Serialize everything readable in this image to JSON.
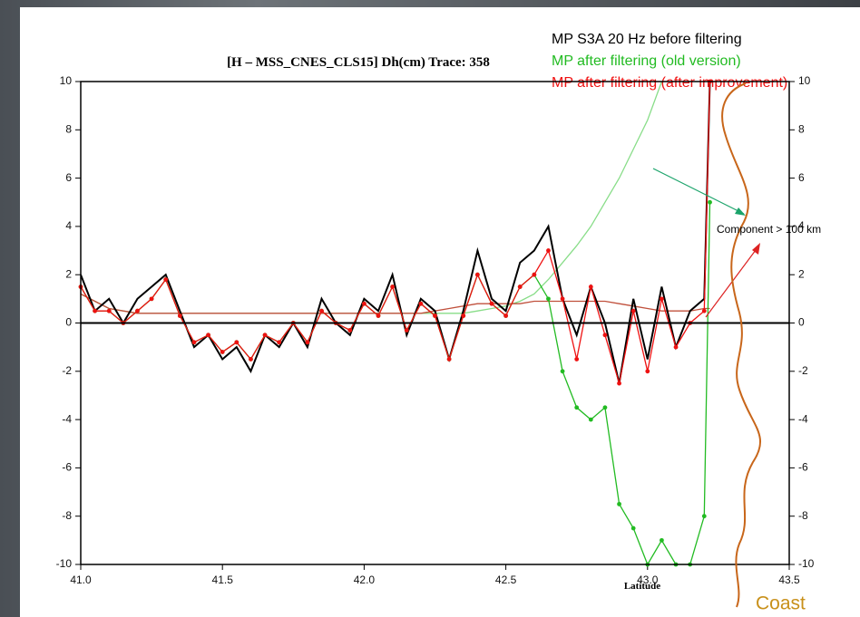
{
  "chart_data": {
    "type": "line",
    "title": "[H – MSS_CNES_CLS15]   Dh(cm)   Trace: 358",
    "xlabel": "Latitude",
    "annotations": [
      "Component > 100 km",
      "Coast"
    ],
    "x": [
      41.0,
      41.05,
      41.1,
      41.15,
      41.2,
      41.25,
      41.3,
      41.35,
      41.4,
      41.45,
      41.5,
      41.55,
      41.6,
      41.65,
      41.7,
      41.75,
      41.8,
      41.85,
      41.9,
      41.95,
      42.0,
      42.05,
      42.1,
      42.15,
      42.2,
      42.25,
      42.3,
      42.35,
      42.4,
      42.45,
      42.5,
      42.55,
      42.6,
      42.65,
      42.7,
      42.75,
      42.8,
      42.85,
      42.9,
      42.95,
      43.0,
      43.05,
      43.1,
      43.15,
      43.2,
      43.22
    ],
    "series": [
      {
        "name": "MP S3A 20 Hz before filtering",
        "color": "#000000",
        "markers": false,
        "values": [
          2.0,
          0.5,
          1.0,
          0.0,
          1.0,
          1.5,
          2.0,
          0.5,
          -1.0,
          -0.5,
          -1.5,
          -1.0,
          -2.0,
          -0.5,
          -1.0,
          0.0,
          -1.0,
          1.0,
          0.0,
          -0.5,
          1.0,
          0.5,
          2.0,
          -0.5,
          1.0,
          0.5,
          -1.5,
          0.5,
          3.0,
          1.0,
          0.5,
          2.5,
          3.0,
          4.0,
          1.0,
          -0.5,
          1.5,
          0.0,
          -2.5,
          1.0,
          -1.5,
          1.5,
          -1.0,
          0.5,
          1.0,
          10
        ]
      },
      {
        "name": "MP after filtering (old version)",
        "color": "#22bb22",
        "markers": true,
        "values": [
          1.5,
          0.5,
          0.5,
          0.0,
          0.5,
          1.0,
          1.8,
          0.3,
          -0.8,
          -0.5,
          -1.2,
          -0.8,
          -1.5,
          -0.5,
          -0.8,
          0.0,
          -0.8,
          0.5,
          0.0,
          -0.3,
          0.8,
          0.3,
          1.5,
          -0.3,
          0.8,
          0.3,
          -1.5,
          0.3,
          2.0,
          0.8,
          0.3,
          1.5,
          2.0,
          1.0,
          -2.0,
          -3.5,
          -4.0,
          -3.5,
          -7.5,
          -8.5,
          -10,
          -9.0,
          -10,
          -10,
          -8,
          5
        ]
      },
      {
        "name": "MP after filtering (after improvement)",
        "color": "#ee1111",
        "markers": true,
        "values": [
          1.5,
          0.5,
          0.5,
          0.0,
          0.5,
          1.0,
          1.8,
          0.3,
          -0.8,
          -0.5,
          -1.2,
          -0.8,
          -1.5,
          -0.5,
          -0.8,
          0.0,
          -0.8,
          0.5,
          0.0,
          -0.3,
          0.8,
          0.3,
          1.5,
          -0.3,
          0.8,
          0.3,
          -1.5,
          0.3,
          2.0,
          0.8,
          0.3,
          1.5,
          2.0,
          3.0,
          1.0,
          -1.5,
          1.5,
          -0.5,
          -2.5,
          0.5,
          -2.0,
          1.0,
          -1.0,
          0.0,
          0.5,
          10
        ]
      },
      {
        "color": "#c0503c",
        "markers": false,
        "values": [
          1.2,
          0.9,
          0.6,
          0.5,
          0.4,
          0.4,
          0.4,
          0.4,
          0.4,
          0.4,
          0.4,
          0.4,
          0.4,
          0.4,
          0.4,
          0.4,
          0.4,
          0.4,
          0.4,
          0.4,
          0.4,
          0.4,
          0.4,
          0.4,
          0.4,
          0.5,
          0.6,
          0.7,
          0.8,
          0.8,
          0.8,
          0.8,
          0.9,
          0.9,
          0.9,
          0.9,
          0.9,
          0.9,
          0.8,
          0.7,
          0.6,
          0.5,
          0.5,
          0.5,
          0.6,
          0.6
        ]
      },
      {
        "color": "#88dd88",
        "markers": false,
        "values": [
          1.2,
          0.9,
          0.6,
          0.5,
          0.4,
          0.4,
          0.4,
          0.4,
          0.4,
          0.4,
          0.4,
          0.4,
          0.4,
          0.4,
          0.4,
          0.4,
          0.4,
          0.4,
          0.4,
          0.4,
          0.4,
          0.4,
          0.4,
          0.4,
          0.4,
          0.4,
          0.4,
          0.4,
          0.5,
          0.6,
          0.7,
          0.9,
          1.2,
          1.8,
          2.5,
          3.2,
          4.0,
          5.0,
          6.0,
          7.2,
          8.4,
          10,
          null,
          null,
          null,
          null
        ]
      }
    ],
    "xlim": [
      41.0,
      43.5
    ],
    "xticks": [
      {
        "value": 41.0,
        "label": "41.0"
      },
      {
        "value": 41.5,
        "label": "41.5"
      },
      {
        "value": 42.0,
        "label": "42.0"
      },
      {
        "value": 42.5,
        "label": "42.5"
      },
      {
        "value": 43.0,
        "label": "43.0"
      },
      {
        "value": 43.5,
        "label": "43.5"
      }
    ],
    "ylim": [
      -10,
      10
    ],
    "yticks": [
      -10,
      -8,
      -6,
      -4,
      -2,
      0,
      2,
      4,
      6,
      8,
      10
    ],
    "grid": false
  }
}
